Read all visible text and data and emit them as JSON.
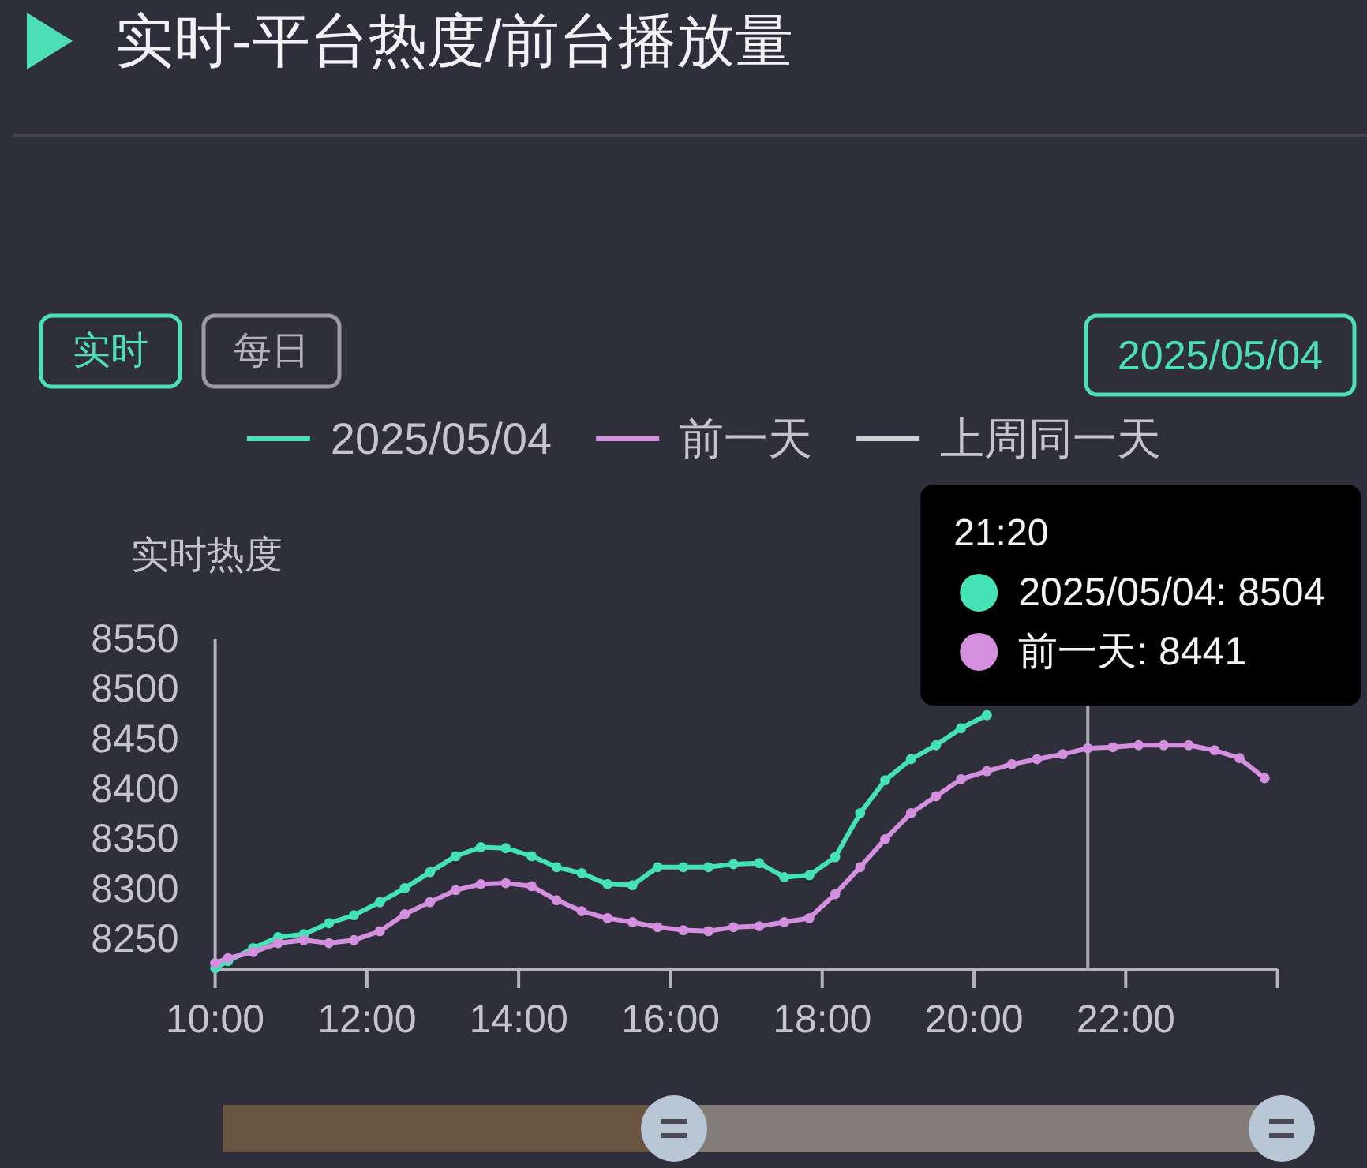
{
  "chart_data": {
    "type": "line",
    "title": "实时-平台热度/前台播放量",
    "ylabel": "实时热度",
    "annotations": [
      "实时",
      "每日",
      "2025/05/04",
      "21:20",
      "2025/05/04: 8504",
      "前一天: 8441"
    ],
    "x": [
      10,
      10.17,
      10.5,
      10.83,
      11.17,
      11.5,
      11.83,
      12.17,
      12.5,
      12.83,
      13.17,
      13.5,
      13.83,
      14.17,
      14.5,
      14.83,
      15.17,
      15.5,
      15.83,
      16.17,
      16.5,
      16.83,
      17.17,
      17.5,
      17.83,
      18.17,
      18.5,
      18.83,
      19.17,
      19.5,
      19.83,
      20.17,
      20.5,
      20.83,
      21.17,
      21.5,
      21.83,
      22.17,
      22.5,
      22.83,
      23.17,
      23.5,
      23.83
    ],
    "series": [
      {
        "name": "2025/05/04",
        "color": "#45e2b6",
        "values": [
          8221,
          8228,
          8241,
          8252,
          8255,
          8266,
          8274,
          8287,
          8301,
          8317,
          8333,
          8342,
          8341,
          8333,
          8322,
          8316,
          8305,
          8304,
          8322,
          8322,
          8322,
          8325,
          8326,
          8312,
          8314,
          8332,
          8376,
          8409,
          8430,
          8444,
          8461,
          8474,
          null,
          null,
          null,
          null,
          null,
          null,
          null,
          null,
          null,
          null,
          null
        ]
      },
      {
        "name": "前一天",
        "color": "#d48fdf",
        "values": [
          8226,
          8231,
          8237,
          8246,
          8249,
          8246,
          8249,
          8258,
          8275,
          8287,
          8299,
          8305,
          8306,
          8303,
          8289,
          8278,
          8271,
          8267,
          8262,
          8259,
          8258,
          8262,
          8263,
          8267,
          8271,
          8295,
          8322,
          8350,
          8376,
          8393,
          8410,
          8418,
          8425,
          8430,
          8435,
          8441,
          8442,
          8444,
          8444,
          8444,
          8439,
          8431,
          8411
        ]
      },
      {
        "name": "上周同一天",
        "color": "#cfcfd6",
        "values": [
          null,
          null,
          null,
          null,
          null,
          null,
          null,
          null,
          null,
          null,
          null,
          null,
          null,
          null,
          null,
          null,
          null,
          null,
          null,
          null,
          null,
          null,
          null,
          null,
          null,
          null,
          null,
          null,
          null,
          null,
          null,
          null,
          null,
          null,
          null,
          null,
          null,
          null,
          null,
          null,
          null,
          null,
          null
        ]
      }
    ],
    "xlim": [
      10,
      24
    ],
    "xticks": [
      {
        "value": 10,
        "label": "10:00"
      },
      {
        "value": 12,
        "label": "12:00"
      },
      {
        "value": 14,
        "label": "14:00"
      },
      {
        "value": 16,
        "label": "16:00"
      },
      {
        "value": 18,
        "label": "18:00"
      },
      {
        "value": 20,
        "label": "20:00"
      },
      {
        "value": 22,
        "label": "22:00"
      },
      {
        "value": 24,
        "label": null
      }
    ],
    "ylim": [
      8220,
      8550
    ],
    "yticks": [
      8250,
      8300,
      8350,
      8400,
      8450,
      8500,
      8550
    ],
    "ref_lines": [
      {
        "axis": "x",
        "value": 21.5,
        "color": "#a9a8b2"
      }
    ],
    "legend": "top",
    "marker": "circle",
    "line_style": "solid"
  }
}
